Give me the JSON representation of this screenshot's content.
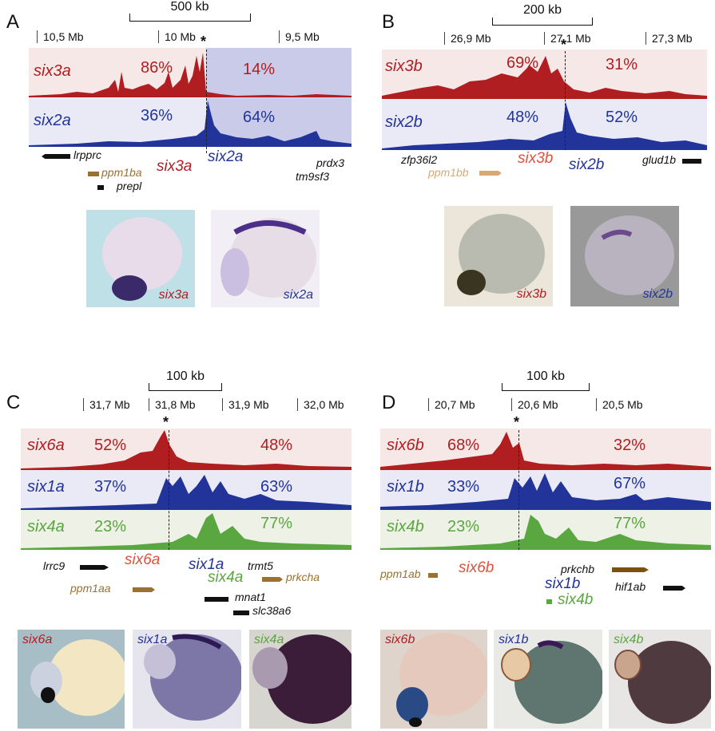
{
  "colors": {
    "red": "#b01e22",
    "blue": "#22349a",
    "green": "#5aa640",
    "brown": "#9a7130",
    "dark": "#111111",
    "bgred": "#f6e8e6",
    "bgblue": "#c9cbe8",
    "bggreen": "#eef1e6"
  },
  "panelA": {
    "letter": "A",
    "scale": "500 kb",
    "coords": [
      "10,5 Mb",
      "10 Mb",
      "9,5 Mb"
    ],
    "tracks": [
      {
        "name": "six3a",
        "left_pct": "86%",
        "right_pct": "14%"
      },
      {
        "name": "six2a",
        "left_pct": "36%",
        "right_pct": "64%"
      }
    ],
    "genes": {
      "lrpprc": "lrpprc",
      "ppm1ba": "ppm1ba",
      "prepl": "prepl",
      "six3a": "six3a",
      "six2a": "six2a",
      "prdx3": "prdx3",
      "tm9sf3": "tm9sf3"
    },
    "photos": [
      "six3a",
      "six2a"
    ],
    "star": "*"
  },
  "panelB": {
    "letter": "B",
    "scale": "200 kb",
    "coords": [
      "26,9 Mb",
      "27,1 Mb",
      "27,3 Mb"
    ],
    "tracks": [
      {
        "name": "six3b",
        "left_pct": "69%",
        "right_pct": "31%"
      },
      {
        "name": "six2b",
        "left_pct": "48%",
        "right_pct": "52%"
      }
    ],
    "genes": {
      "zfp36l2": "zfp36l2",
      "ppm1bb": "ppm1bb",
      "six3b": "six3b",
      "six2b": "six2b",
      "glud1b": "glud1b"
    },
    "photos": [
      "six3b",
      "six2b"
    ],
    "star": "*"
  },
  "panelC": {
    "letter": "C",
    "scale": "100 kb",
    "coords": [
      "31,7 Mb",
      "31,8 Mb",
      "31,9 Mb",
      "32,0 Mb"
    ],
    "tracks": [
      {
        "name": "six6a",
        "left_pct": "52%",
        "right_pct": "48%"
      },
      {
        "name": "six1a",
        "left_pct": "37%",
        "right_pct": "63%"
      },
      {
        "name": "six4a",
        "left_pct": "23%",
        "right_pct": "77%"
      }
    ],
    "genes": {
      "lrrc9": "lrrc9",
      "six6a": "six6a",
      "six1a": "six1a",
      "trmt5": "trmt5",
      "six4a": "six4a",
      "prkcha": "prkcha",
      "ppm1aa": "ppm1aa",
      "mnat1": "mnat1",
      "slc38a6": "slc38a6"
    },
    "photos": [
      "six6a",
      "six1a",
      "six4a"
    ],
    "star": "*"
  },
  "panelD": {
    "letter": "D",
    "scale": "100 kb",
    "coords": [
      "20,7 Mb",
      "20,6 Mb",
      "20,5 Mb"
    ],
    "tracks": [
      {
        "name": "six6b",
        "left_pct": "68%",
        "right_pct": "32%"
      },
      {
        "name": "six1b",
        "left_pct": "33%",
        "right_pct": "67%"
      },
      {
        "name": "six4b",
        "left_pct": "23%",
        "right_pct": "77%"
      }
    ],
    "genes": {
      "ppm1ab": "ppm1ab",
      "six6b": "six6b",
      "prkchb": "prkchb",
      "six1b": "six1b",
      "hif1ab": "hif1ab",
      "six4b": "six4b"
    },
    "photos": [
      "six6b",
      "six1b",
      "six4b"
    ],
    "star": "*"
  }
}
